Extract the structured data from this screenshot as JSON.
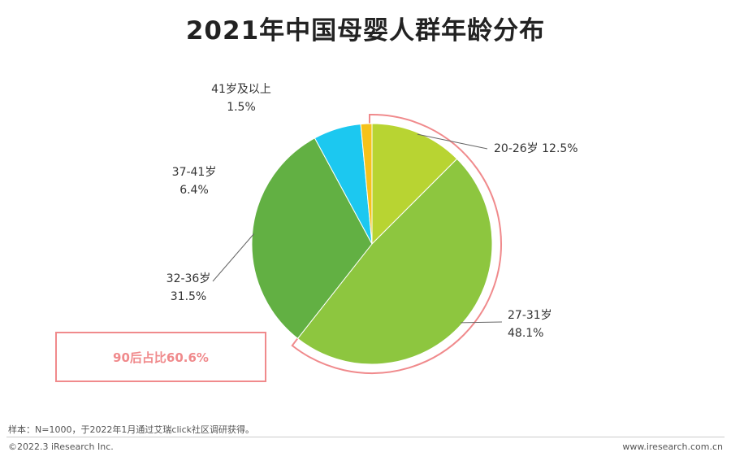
{
  "chart_data": {
    "type": "pie",
    "title": "2021年中国母婴人群年龄分布",
    "categories": [
      "20-26岁",
      "27-31岁",
      "32-36岁",
      "37-41岁",
      "41岁及以上"
    ],
    "values": [
      12.5,
      48.1,
      31.5,
      6.4,
      1.5
    ],
    "value_labels": [
      "12.5%",
      "48.1%",
      "31.5%",
      "6.4%",
      "1.5%"
    ],
    "colors": [
      "#b8d432",
      "#8dc63f",
      "#62b043",
      "#1cc8f0",
      "#f5c21b"
    ],
    "start_angle_deg": 0,
    "direction": "clockwise",
    "highlight": {
      "categories": [
        "20-26岁",
        "27-31岁"
      ],
      "label": "90后占比60.6%",
      "color": "#f08a8c"
    }
  },
  "footer": {
    "note": "样本：N=1000，于2022年1月通过艾瑞click社区调研获得。",
    "copyright": "©2022.3 iResearch Inc.",
    "website": "www.iresearch.com.cn"
  }
}
